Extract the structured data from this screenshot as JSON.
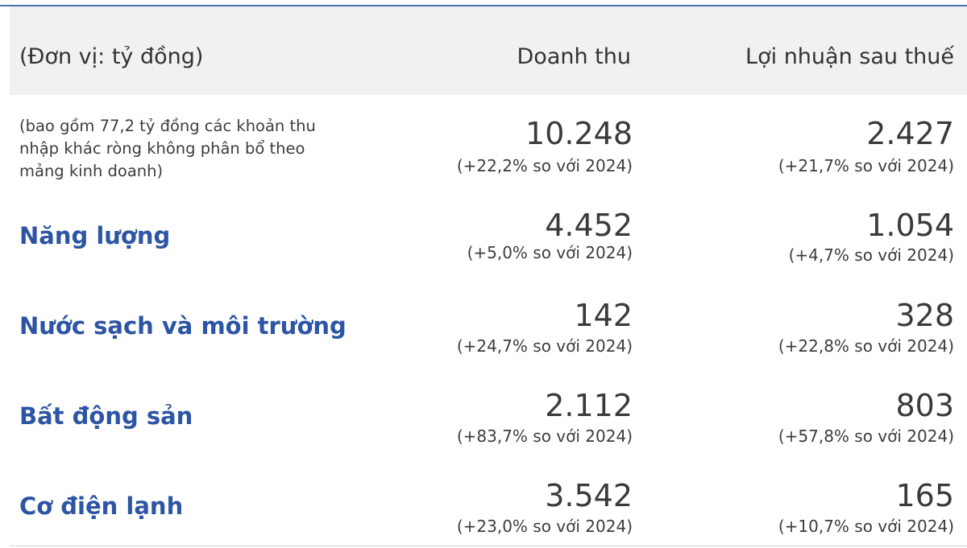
{
  "header": {
    "unit": "(Đơn vị: tỷ đồng)",
    "revenue": "Doanh thu",
    "profit": "Lợi nhuận sau thuế"
  },
  "rows": [
    {
      "label": "(bao gồm 77,2 tỷ đồng các khoản thu nhập khác ròng không phân bổ theo mảng kinh doanh)",
      "revenue": "10.248",
      "revenue_change": "(+22,2% so với 2024)",
      "profit": "2.427",
      "profit_change": "(+21,7% so với 2024)"
    },
    {
      "label": "Năng lượng",
      "revenue": "4.452",
      "revenue_change": "(+5,0% so với 2024)",
      "profit": "1.054",
      "profit_change": "(+4,7% so với 2024)"
    },
    {
      "label": "Nước sạch và môi trường",
      "revenue": "142",
      "revenue_change": "(+24,7% so với 2024)",
      "profit": "328",
      "profit_change": "(+22,8% so với 2024)"
    },
    {
      "label": "Bất động sản",
      "revenue": "2.112",
      "revenue_change": "(+83,7% so với 2024)",
      "profit": "803",
      "profit_change": "(+57,8% so với 2024)"
    },
    {
      "label": "Cơ điện lạnh",
      "revenue": "3.542",
      "revenue_change": "(+23,0% so với 2024)",
      "profit": "165",
      "profit_change": "(+10,7% so với 2024)"
    }
  ],
  "colors": {
    "segment_label": "#2d55a4",
    "header_bg": "#f0f1f3",
    "top_rule": "#4a6fb3"
  }
}
